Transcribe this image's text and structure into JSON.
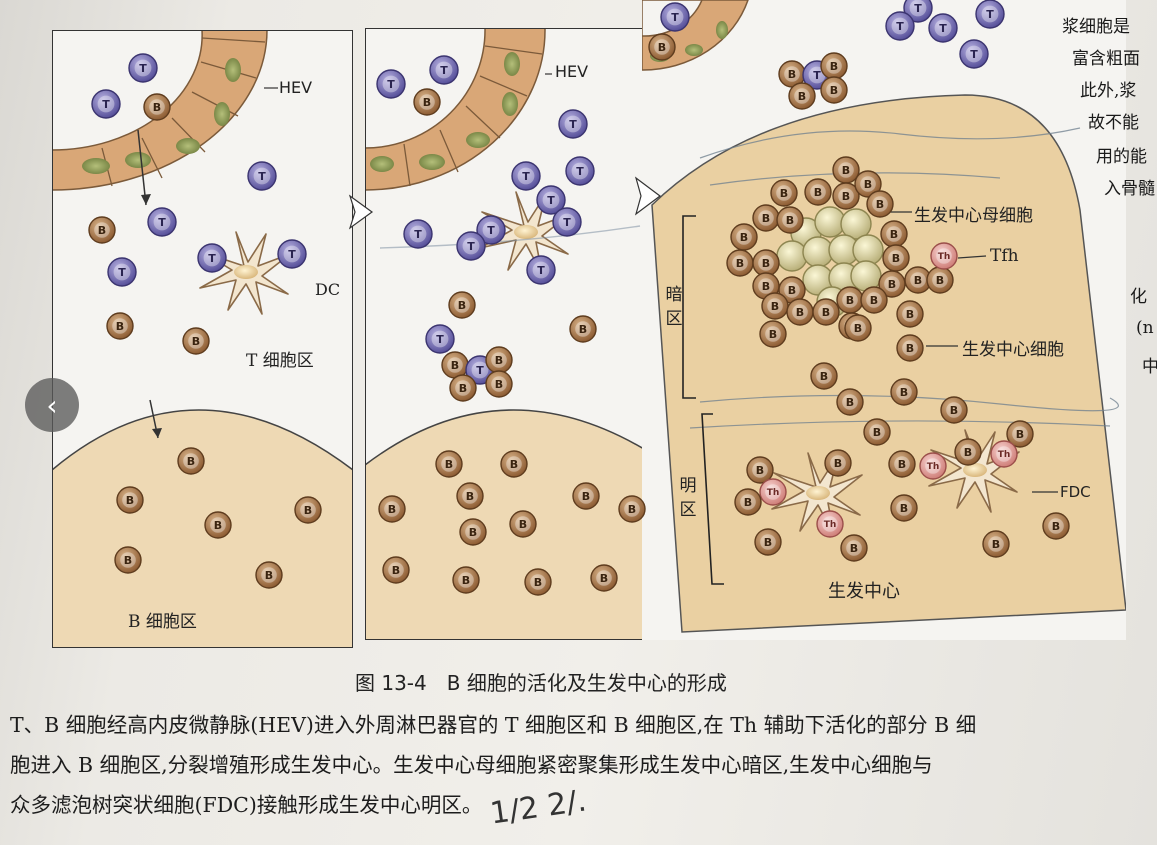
{
  "labels": {
    "hev": "HEV",
    "dc": "DC",
    "t_zone": "T 细胞区",
    "b_zone": "B 细胞区",
    "dark_zone": "暗区",
    "light_zone": "明区",
    "centroblast": "生发中心母细胞",
    "centrocyte": "生发中心细胞",
    "tfh": "Tfh",
    "fdc": "FDC",
    "germinal_center": "生发中心"
  },
  "cell_letters": {
    "t": "T",
    "b": "B",
    "th": "Th"
  },
  "caption": "图 13-4　B 细胞的活化及生发中心的形成",
  "body_lines": [
    "T、B 细胞经高内皮微静脉(HEV)进入外周淋巴器官的 T 细胞区和 B 细胞区,在 Th 辅助下活化的部分 B 细",
    "胞进入 B 细胞区,分裂增殖形成生发中心。生发中心母细胞紧密聚集形成生发中心暗区,生发中心细胞与",
    "众多滤泡树突状细胞(FDC)接触形成生发中心明区。"
  ],
  "side_text": [
    "浆细胞是",
    "富含粗面",
    "此外,浆",
    "故不能",
    "用的能",
    "入骨髓",
    "化",
    "(n",
    "中"
  ],
  "handwriting": "1/2  2/.",
  "nav": {
    "prev_glyph": "‹"
  },
  "colors": {
    "t_cell": "#6a64a8",
    "b_cell": "#a9784a",
    "tfh": "#e2a4a0",
    "centroblast": "#d8d3a4",
    "hev": "#d9a777",
    "gc_fill": "#ead0a2",
    "follicle_fill": "#eed9b4"
  }
}
